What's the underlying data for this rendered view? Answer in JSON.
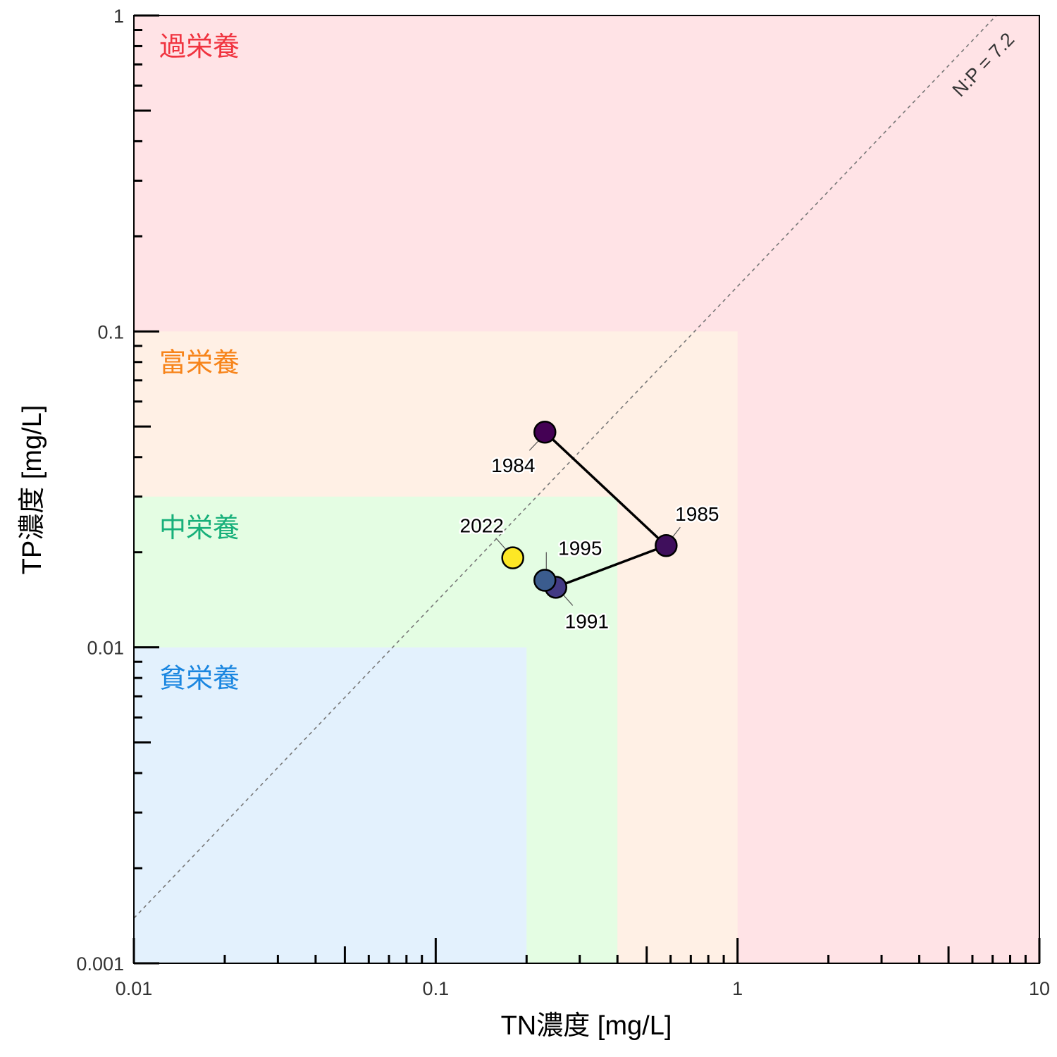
{
  "chart_data": {
    "type": "scatter",
    "xlabel": "TN濃度 [mg/L]",
    "ylabel": "TP濃度 [mg/L]",
    "x_scale": "log",
    "y_scale": "log",
    "xlim": [
      0.01,
      10
    ],
    "ylim": [
      0.001,
      1
    ],
    "x_ticks": [
      {
        "value": 0.01,
        "label": "0.01"
      },
      {
        "value": 0.1,
        "label": "0.1"
      },
      {
        "value": 1,
        "label": "1"
      },
      {
        "value": 10,
        "label": "10"
      }
    ],
    "y_ticks": [
      {
        "value": 0.001,
        "label": "0.001"
      },
      {
        "value": 0.01,
        "label": "0.01"
      },
      {
        "value": 0.1,
        "label": "0.1"
      },
      {
        "value": 1,
        "label": "1"
      }
    ],
    "grid": false,
    "zones": [
      {
        "label": "過栄養",
        "tn_max": 10,
        "tp_max": 1,
        "fill": "#ffe3e6",
        "text_color": "#f0333f"
      },
      {
        "label": "富栄養",
        "tn_max": 1,
        "tp_max": 0.1,
        "fill": "#fff0e5",
        "text_color": "#f7841a"
      },
      {
        "label": "中栄養",
        "tn_max": 0.4,
        "tp_max": 0.03,
        "fill": "#e4fde3",
        "text_color": "#17b07a"
      },
      {
        "label": "貧栄養",
        "tn_max": 0.2,
        "tp_max": 0.01,
        "fill": "#e3f1fd",
        "text_color": "#1a86e0"
      }
    ],
    "ratio_line": {
      "label": "N:P = 7.2",
      "ratio": 7.2,
      "color": "#777777"
    },
    "points": [
      {
        "year": "1984",
        "label": "1984",
        "tn": 0.23,
        "tp": 0.048,
        "color": "#440154",
        "connected": true
      },
      {
        "year": "1985",
        "label": "1985",
        "tn": 0.58,
        "tp": 0.021,
        "color": "#3f0f5c",
        "connected": true
      },
      {
        "year": "1991",
        "label": "1991",
        "tn": 0.25,
        "tp": 0.0155,
        "color": "#433a84",
        "connected": true
      },
      {
        "year": "1995",
        "label": "1995",
        "tn": 0.23,
        "tp": 0.0163,
        "color": "#3b5c8e",
        "connected": true
      },
      {
        "year": "2022",
        "label": "2022",
        "tn": 0.18,
        "tp": 0.0192,
        "color": "#fde725",
        "connected": false
      }
    ]
  }
}
